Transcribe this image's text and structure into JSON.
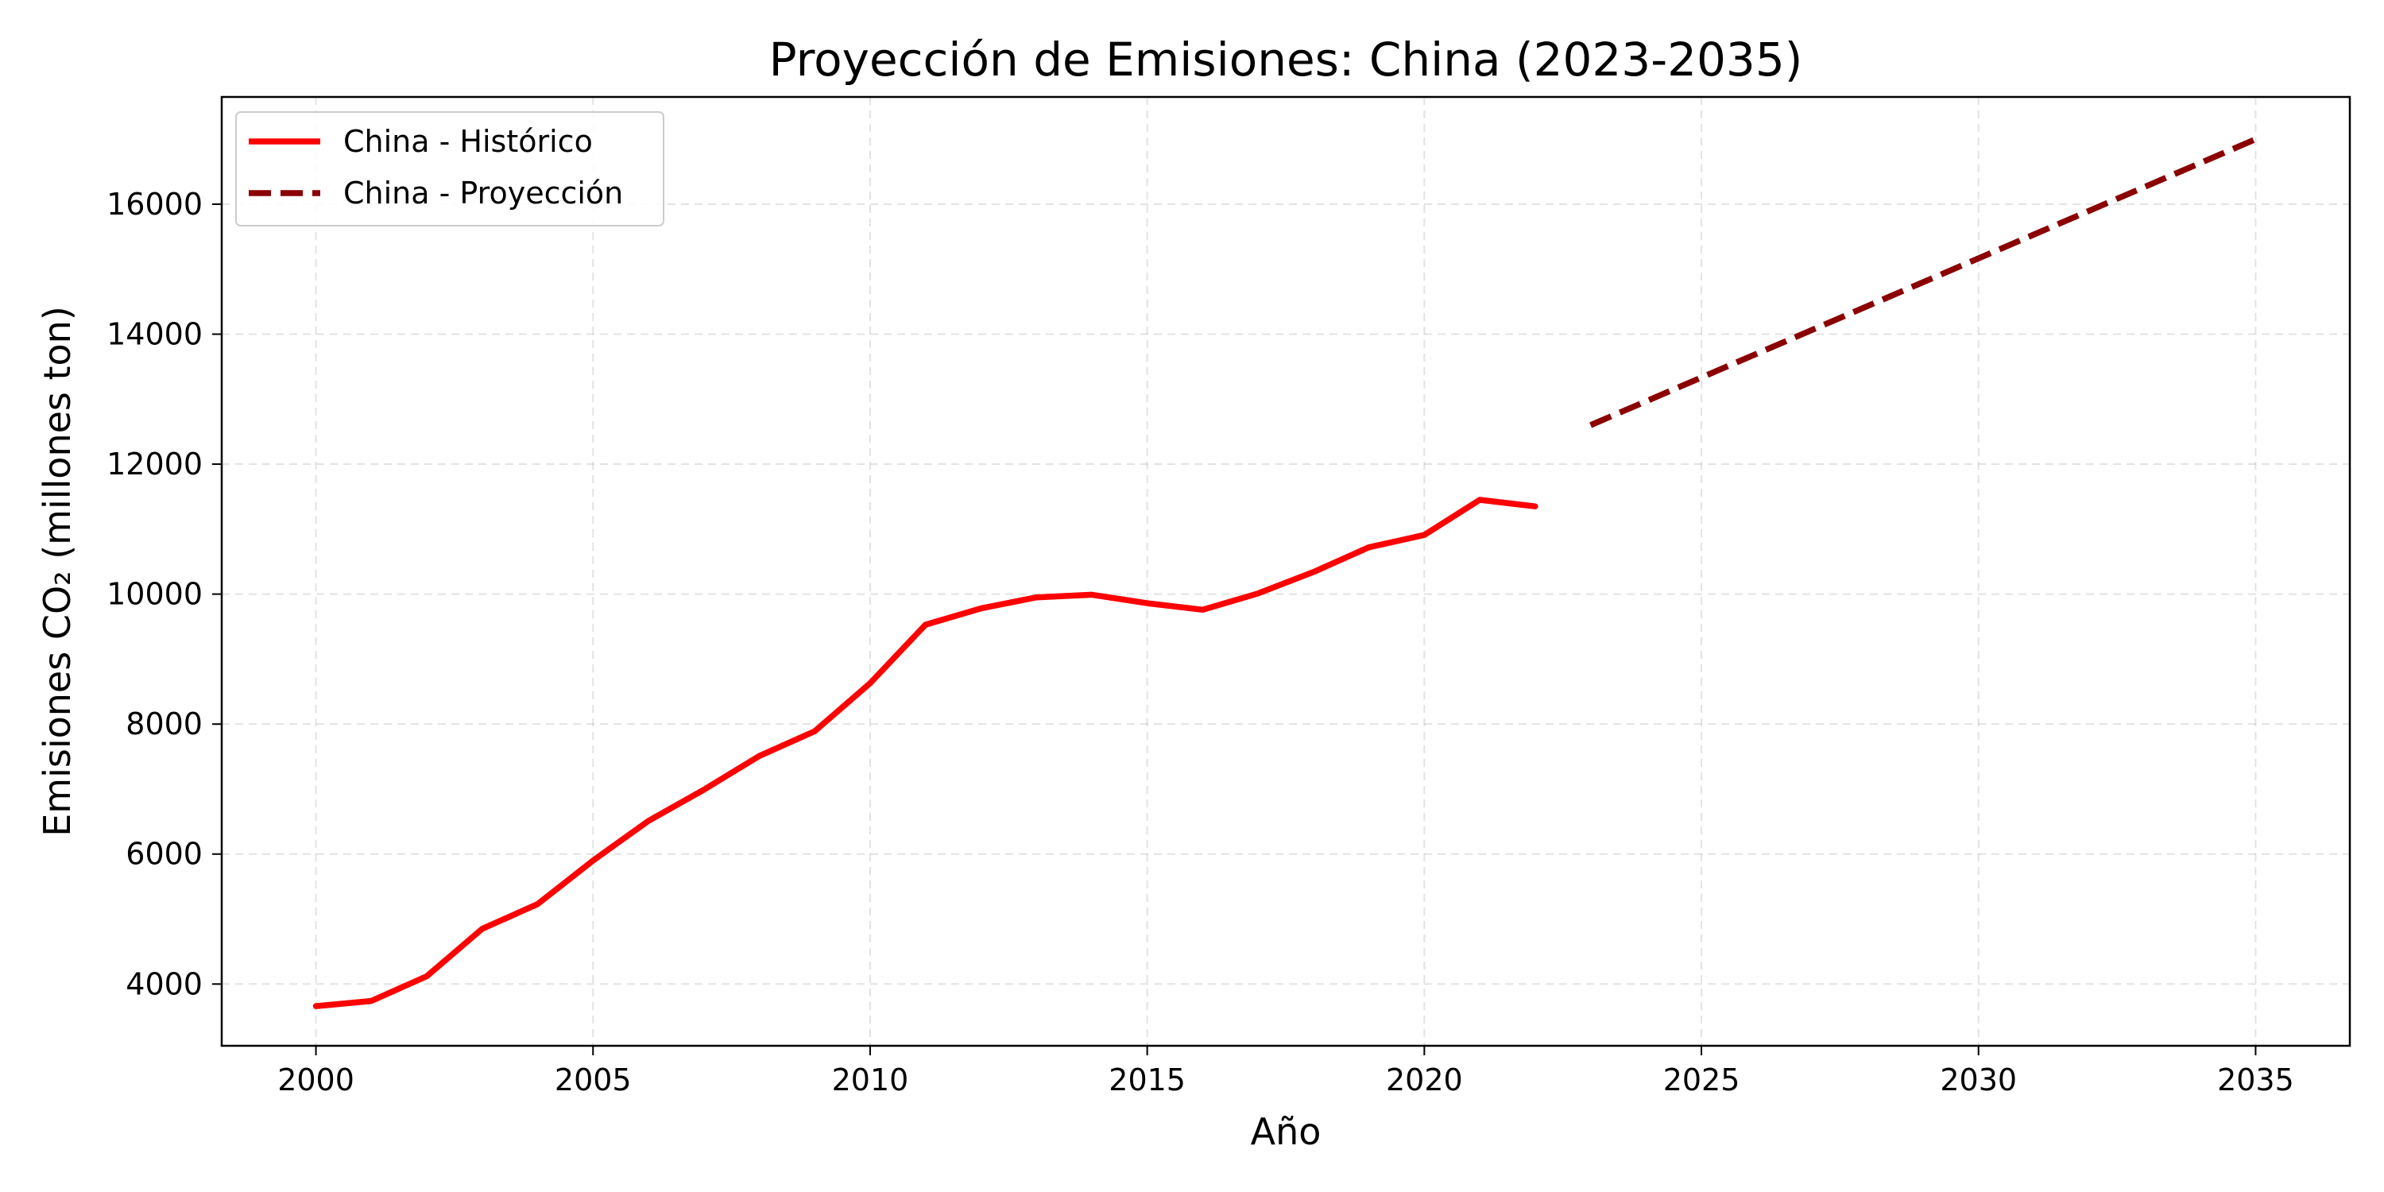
{
  "chart_data": {
    "type": "line",
    "title": "Proyección de Emisiones: China (2023-2035)",
    "xlabel": "Año",
    "ylabel": "Emisiones CO₂ (millones ton)",
    "xlim": [
      1998.3,
      2036.7
    ],
    "ylim": [
      3050,
      17650
    ],
    "xticks": [
      2000,
      2005,
      2010,
      2015,
      2020,
      2025,
      2030,
      2035
    ],
    "yticks": [
      4000,
      6000,
      8000,
      10000,
      12000,
      14000,
      16000
    ],
    "grid": true,
    "legend_position": "upper-left",
    "series": [
      {
        "name": "China - Histórico",
        "color": "#ff0000",
        "style": "solid",
        "x": [
          2000,
          2001,
          2002,
          2003,
          2004,
          2005,
          2006,
          2007,
          2008,
          2009,
          2010,
          2011,
          2012,
          2013,
          2014,
          2015,
          2016,
          2017,
          2018,
          2019,
          2020,
          2021,
          2022
        ],
        "y": [
          3660,
          3740,
          4120,
          4850,
          5230,
          5900,
          6510,
          6990,
          7510,
          7890,
          8630,
          9530,
          9780,
          9950,
          9990,
          9860,
          9760,
          10010,
          10340,
          10720,
          10910,
          11450,
          11350
        ]
      },
      {
        "name": "China - Proyección",
        "color": "#8b0000",
        "style": "dashed",
        "x": [
          2023,
          2035
        ],
        "y": [
          12600,
          17000
        ]
      }
    ]
  }
}
